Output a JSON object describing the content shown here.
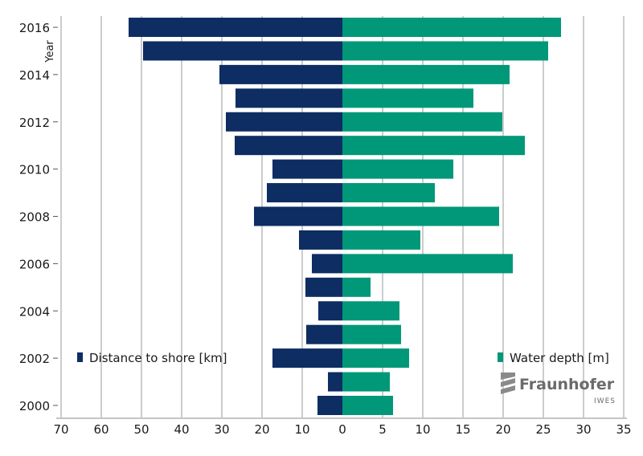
{
  "chart_data": {
    "type": "bar",
    "orientation": "horizontal-diverging",
    "ylabel": "Year",
    "categories": [
      2000,
      2001,
      2002,
      2003,
      2004,
      2005,
      2006,
      2007,
      2008,
      2009,
      2010,
      2011,
      2012,
      2013,
      2014,
      2015,
      2016
    ],
    "year_tick_labels": [
      "2000",
      "2002",
      "2004",
      "2006",
      "2008",
      "2010",
      "2012",
      "2014",
      "2016"
    ],
    "x_tick_labels": [
      "70",
      "60",
      "50",
      "40",
      "30",
      "20",
      "10",
      "0",
      "5",
      "10",
      "15",
      "20",
      "25",
      "30",
      "35"
    ],
    "left_xlim": [
      0,
      70
    ],
    "right_xlim": [
      0,
      35
    ],
    "grid": "vertical",
    "series": [
      {
        "name": "Distance to shore [km]",
        "side": "left",
        "color": "#0d2d63",
        "values": [
          6.2,
          3.6,
          17.4,
          9.0,
          6.0,
          9.2,
          7.6,
          10.8,
          22.0,
          18.8,
          17.4,
          26.8,
          29.0,
          26.6,
          30.6,
          49.6,
          53.2
        ]
      },
      {
        "name": "Water depth [m]",
        "side": "right",
        "color": "#009878",
        "values": [
          6.3,
          5.9,
          8.3,
          7.3,
          7.1,
          3.5,
          21.2,
          9.7,
          19.5,
          11.5,
          13.8,
          22.7,
          19.9,
          16.3,
          20.8,
          25.6,
          27.2
        ]
      }
    ],
    "legend": "bottom-left and bottom-right"
  },
  "logo": {
    "name": "Fraunhofer",
    "sub": "IWES"
  }
}
